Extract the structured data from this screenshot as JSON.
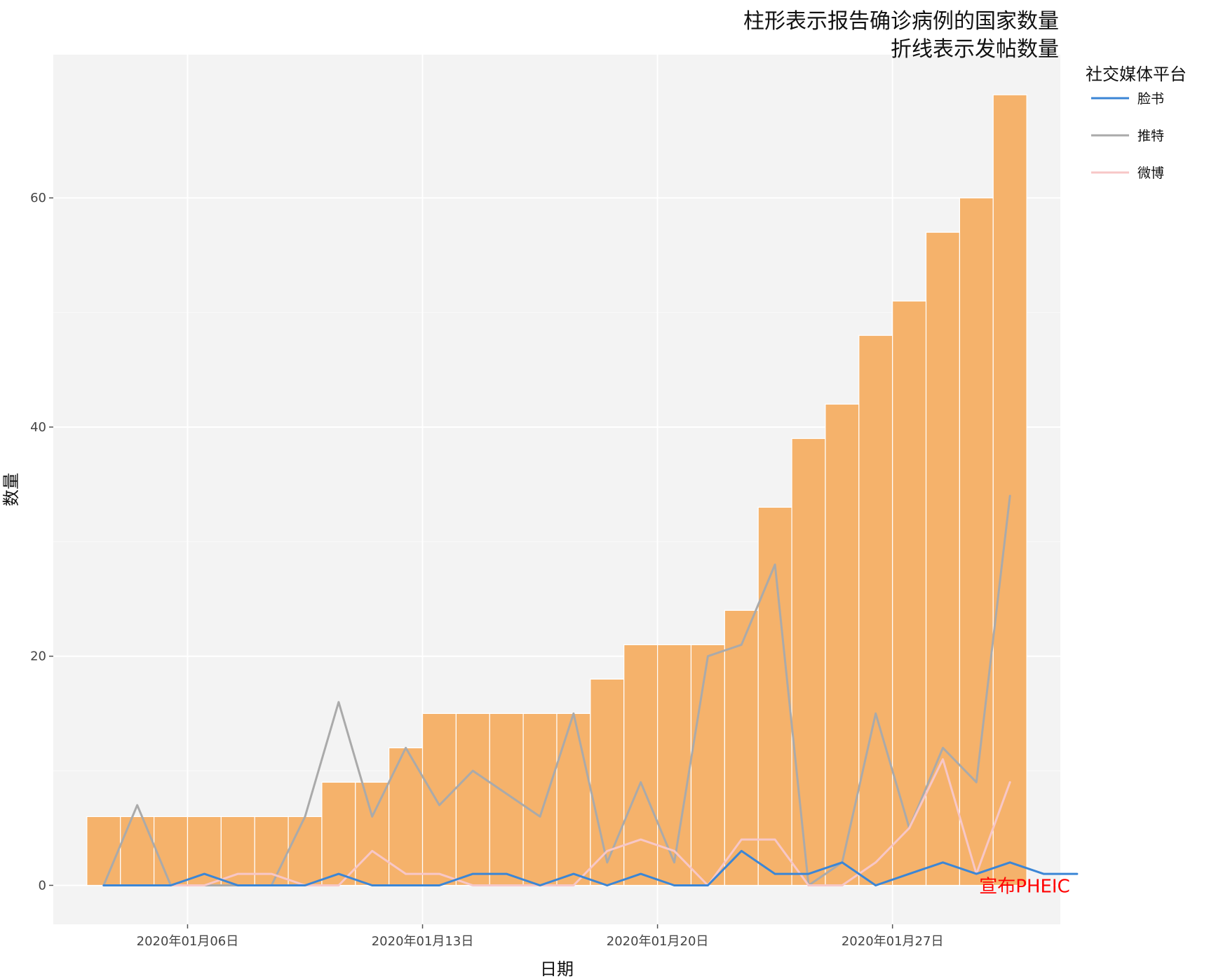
{
  "chart_data": {
    "type": "bar",
    "title": [
      "柱形表示报告确诊病例的国家数量",
      "折线表示发帖数量"
    ],
    "xlabel": "日期",
    "ylabel": "数量",
    "x_start": "2020-01-03",
    "x_ticks": [
      {
        "date": "2020-01-06",
        "label": "2020年01月06日"
      },
      {
        "date": "2020-01-13",
        "label": "2020年01月13日"
      },
      {
        "date": "2020-01-20",
        "label": "2020年01月20日"
      },
      {
        "date": "2020-01-27",
        "label": "2020年01月27日"
      }
    ],
    "y_ticks": [
      0,
      20,
      40,
      60
    ],
    "ylim": [
      -3.4,
      72.5
    ],
    "xlim": [
      "2020-01-02",
      "2020-02-01"
    ],
    "grid": true,
    "bars": {
      "name": "报告确诊病例的国家数量",
      "color": "#f5b26b",
      "dates": [
        "2020-01-03",
        "2020-01-04",
        "2020-01-05",
        "2020-01-06",
        "2020-01-07",
        "2020-01-08",
        "2020-01-09",
        "2020-01-10",
        "2020-01-11",
        "2020-01-12",
        "2020-01-13",
        "2020-01-14",
        "2020-01-15",
        "2020-01-16",
        "2020-01-17",
        "2020-01-18",
        "2020-01-19",
        "2020-01-20",
        "2020-01-21",
        "2020-01-22",
        "2020-01-23",
        "2020-01-24",
        "2020-01-25",
        "2020-01-26",
        "2020-01-27",
        "2020-01-28",
        "2020-01-29",
        "2020-01-30",
        "2020-01-31"
      ],
      "values": [
        6,
        6,
        6,
        6,
        6,
        6,
        6,
        9,
        9,
        12,
        15,
        15,
        15,
        15,
        15,
        18,
        21,
        21,
        21,
        24,
        33,
        39,
        42,
        48,
        51,
        57,
        60,
        69,
        0
      ]
    },
    "legend": {
      "title": "社交媒体平台",
      "position": "right-top"
    },
    "series": [
      {
        "name": "脸书",
        "color": "#3b86d6",
        "values": [
          0,
          0,
          0,
          1,
          0,
          0,
          0,
          1,
          0,
          0,
          0,
          1,
          1,
          0,
          1,
          0,
          1,
          0,
          0,
          3,
          1,
          1,
          2,
          0,
          1,
          2,
          1,
          2,
          1,
          1
        ]
      },
      {
        "name": "推特",
        "color": "#aaaaaa",
        "values": [
          0,
          7,
          0,
          0,
          0,
          0,
          6,
          16,
          6,
          12,
          7,
          10,
          8,
          6,
          15,
          2,
          9,
          2,
          20,
          21,
          28,
          0,
          2,
          15,
          5,
          12,
          9,
          34
        ]
      },
      {
        "name": "微博",
        "color": "#f7c7c7",
        "values": [
          0,
          0,
          0,
          0,
          1,
          1,
          0,
          0,
          3,
          1,
          1,
          0,
          0,
          0,
          0,
          3,
          4,
          3,
          0,
          4,
          4,
          0,
          0,
          2,
          5,
          11,
          1,
          9
        ]
      }
    ],
    "series_start_dates": {
      "脸书": "2020-01-03",
      "推特": "2020-01-03",
      "微博": "2020-01-03"
    },
    "annotation": {
      "text": "宣布PHEIC",
      "date": "2020-01-30",
      "y": 0,
      "color": "#ff0000"
    }
  }
}
